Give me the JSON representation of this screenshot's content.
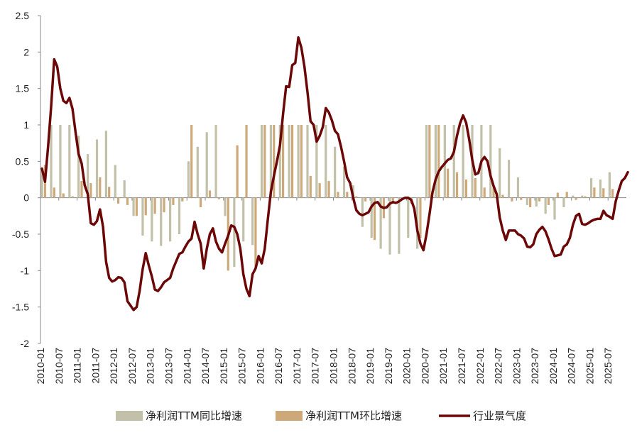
{
  "chart_data": {
    "type": "bar+line",
    "title": "",
    "xlabel": "",
    "ylabel": "",
    "ylim": [
      -2,
      2.5
    ],
    "y_ticks": [
      "2.5",
      "2",
      "1.5",
      "1",
      "0.5",
      "0",
      "-0.5",
      "-1",
      "-1.5",
      "-2"
    ],
    "y_tick_values": [
      2.5,
      2,
      1.5,
      1,
      0.5,
      0,
      -0.5,
      -1,
      -1.5,
      -2
    ],
    "x_range": [
      "2010-01",
      "2025-12"
    ],
    "x_ticks": [
      "2010-01",
      "2010-07",
      "2011-01",
      "2011-07",
      "2012-01",
      "2012-07",
      "2013-01",
      "2013-07",
      "2014-01",
      "2014-07",
      "2015-01",
      "2015-07",
      "2016-01",
      "2016-07",
      "2017-01",
      "2017-07",
      "2018-01",
      "2018-07",
      "2019-01",
      "2019-07",
      "2020-01",
      "2020-07",
      "2021-01",
      "2021-07",
      "2022-01",
      "2022-07",
      "2023-01",
      "2023-07",
      "2024-01",
      "2024-07",
      "2025-01",
      "2025-07"
    ],
    "legend": [
      "净利润TTM同比增速",
      "净利润TTM环比增速",
      "行业景气度"
    ],
    "colors": {
      "yoy": "#c2c0a8",
      "mom": "#cda97a",
      "line": "#6b0707"
    },
    "yoy_bars": [
      [
        "2010-01",
        0.4
      ],
      [
        "2010-04",
        1.0
      ],
      [
        "2010-07",
        1.0
      ],
      [
        "2010-10",
        1.0
      ],
      [
        "2011-01",
        0.85
      ],
      [
        "2011-04",
        0.6
      ],
      [
        "2011-07",
        0.8
      ],
      [
        "2011-10",
        0.92
      ],
      [
        "2012-01",
        0.45
      ],
      [
        "2012-04",
        0.24
      ],
      [
        "2012-07",
        -0.25
      ],
      [
        "2012-10",
        -0.52
      ],
      [
        "2013-01",
        -0.6
      ],
      [
        "2013-04",
        -0.66
      ],
      [
        "2013-07",
        -0.6
      ],
      [
        "2013-10",
        -0.5
      ],
      [
        "2014-01",
        0.5
      ],
      [
        "2014-04",
        0.7
      ],
      [
        "2014-07",
        0.9
      ],
      [
        "2014-10",
        1.0
      ],
      [
        "2015-01",
        -0.25
      ],
      [
        "2015-04",
        -0.95
      ],
      [
        "2015-07",
        -0.6
      ],
      [
        "2015-10",
        -0.65
      ],
      [
        "2016-01",
        1.0
      ],
      [
        "2016-04",
        1.0
      ],
      [
        "2016-07",
        1.0
      ],
      [
        "2016-10",
        1.0
      ],
      [
        "2017-01",
        1.0
      ],
      [
        "2017-04",
        1.0
      ],
      [
        "2017-07",
        1.0
      ],
      [
        "2017-10",
        1.0
      ],
      [
        "2018-01",
        0.7
      ],
      [
        "2018-04",
        0.43
      ],
      [
        "2018-07",
        0.17
      ],
      [
        "2018-10",
        -0.4
      ],
      [
        "2019-01",
        -0.55
      ],
      [
        "2019-04",
        -0.7
      ],
      [
        "2019-07",
        -0.78
      ],
      [
        "2019-10",
        -0.77
      ],
      [
        "2020-01",
        -0.55
      ],
      [
        "2020-04",
        -0.7
      ],
      [
        "2020-07",
        1.0
      ],
      [
        "2020-10",
        1.0
      ],
      [
        "2021-01",
        1.0
      ],
      [
        "2021-04",
        1.0
      ],
      [
        "2021-07",
        1.0
      ],
      [
        "2021-10",
        1.0
      ],
      [
        "2022-01",
        1.0
      ],
      [
        "2022-04",
        1.0
      ],
      [
        "2022-07",
        0.68
      ],
      [
        "2022-10",
        0.52
      ],
      [
        "2023-01",
        0.28
      ],
      [
        "2023-04",
        -0.1
      ],
      [
        "2023-07",
        -0.12
      ],
      [
        "2023-10",
        -0.22
      ],
      [
        "2024-01",
        -0.3
      ],
      [
        "2024-04",
        -0.13
      ],
      [
        "2024-07",
        0.03
      ],
      [
        "2024-10",
        0.03
      ],
      [
        "2025-01",
        0.27
      ],
      [
        "2025-04",
        0.25
      ],
      [
        "2025-07",
        0.35
      ]
    ],
    "mom_bars": [
      [
        "2010-02",
        0.45
      ],
      [
        "2010-05",
        0.14
      ],
      [
        "2010-08",
        0.06
      ],
      [
        "2010-11",
        0.02
      ],
      [
        "2011-02",
        0.23
      ],
      [
        "2011-05",
        0.2
      ],
      [
        "2011-08",
        0.28
      ],
      [
        "2011-11",
        0.15
      ],
      [
        "2012-02",
        -0.08
      ],
      [
        "2012-05",
        -0.1
      ],
      [
        "2012-08",
        -0.25
      ],
      [
        "2012-11",
        -0.24
      ],
      [
        "2013-02",
        -0.22
      ],
      [
        "2013-05",
        -0.2
      ],
      [
        "2013-08",
        -0.1
      ],
      [
        "2013-11",
        -0.05
      ],
      [
        "2014-02",
        1.0
      ],
      [
        "2014-05",
        -0.13
      ],
      [
        "2014-08",
        0.1
      ],
      [
        "2014-11",
        -0.02
      ],
      [
        "2015-02",
        -1.0
      ],
      [
        "2015-05",
        0.72
      ],
      [
        "2015-08",
        1.0
      ],
      [
        "2015-11",
        -0.95
      ],
      [
        "2016-02",
        1.0
      ],
      [
        "2016-05",
        1.0
      ],
      [
        "2016-08",
        1.0
      ],
      [
        "2016-11",
        1.0
      ],
      [
        "2017-02",
        1.0
      ],
      [
        "2017-05",
        0.3
      ],
      [
        "2017-08",
        0.2
      ],
      [
        "2017-11",
        0.23
      ],
      [
        "2018-02",
        0.08
      ],
      [
        "2018-05",
        0.08
      ],
      [
        "2018-08",
        0.02
      ],
      [
        "2018-11",
        -0.05
      ],
      [
        "2019-02",
        -0.58
      ],
      [
        "2019-05",
        -0.28
      ],
      [
        "2019-08",
        -0.05
      ],
      [
        "2019-11",
        -0.02
      ],
      [
        "2020-02",
        -0.08
      ],
      [
        "2020-05",
        -0.55
      ],
      [
        "2020-08",
        1.0
      ],
      [
        "2020-11",
        1.0
      ],
      [
        "2021-02",
        0.4
      ],
      [
        "2021-05",
        0.35
      ],
      [
        "2021-08",
        0.25
      ],
      [
        "2021-11",
        0.27
      ],
      [
        "2022-02",
        0.14
      ],
      [
        "2022-05",
        0.16
      ],
      [
        "2022-08",
        0.04
      ],
      [
        "2022-11",
        -0.05
      ],
      [
        "2023-02",
        -0.03
      ],
      [
        "2023-05",
        -0.13
      ],
      [
        "2023-08",
        -0.05
      ],
      [
        "2023-11",
        -0.1
      ],
      [
        "2024-02",
        0.07
      ],
      [
        "2024-05",
        0.08
      ],
      [
        "2024-08",
        -0.03
      ],
      [
        "2024-11",
        0.02
      ],
      [
        "2025-02",
        0.14
      ],
      [
        "2025-05",
        0.13
      ],
      [
        "2025-08",
        0.12
      ]
    ],
    "line_points": [
      [
        "2010-01",
        0.4
      ],
      [
        "2010-02",
        0.22
      ],
      [
        "2010-03",
        0.7
      ],
      [
        "2010-04",
        1.25
      ],
      [
        "2010-05",
        1.9
      ],
      [
        "2010-06",
        1.8
      ],
      [
        "2010-07",
        1.5
      ],
      [
        "2010-08",
        1.33
      ],
      [
        "2010-09",
        1.3
      ],
      [
        "2010-10",
        1.37
      ],
      [
        "2010-11",
        1.22
      ],
      [
        "2010-12",
        0.9
      ],
      [
        "2011-01",
        0.6
      ],
      [
        "2011-02",
        0.47
      ],
      [
        "2011-03",
        0.17
      ],
      [
        "2011-04",
        0.05
      ],
      [
        "2011-05",
        -0.35
      ],
      [
        "2011-06",
        -0.37
      ],
      [
        "2011-07",
        -0.32
      ],
      [
        "2011-08",
        -0.16
      ],
      [
        "2011-09",
        -0.4
      ],
      [
        "2011-10",
        -0.88
      ],
      [
        "2011-11",
        -1.1
      ],
      [
        "2011-12",
        -1.15
      ],
      [
        "2012-01",
        -1.13
      ],
      [
        "2012-02",
        -1.09
      ],
      [
        "2012-03",
        -1.1
      ],
      [
        "2012-04",
        -1.16
      ],
      [
        "2012-05",
        -1.42
      ],
      [
        "2012-06",
        -1.48
      ],
      [
        "2012-07",
        -1.54
      ],
      [
        "2012-08",
        -1.5
      ],
      [
        "2012-09",
        -1.28
      ],
      [
        "2012-10",
        -0.98
      ],
      [
        "2012-11",
        -0.76
      ],
      [
        "2012-12",
        -0.93
      ],
      [
        "2013-01",
        -1.08
      ],
      [
        "2013-02",
        -1.26
      ],
      [
        "2013-03",
        -1.28
      ],
      [
        "2013-04",
        -1.23
      ],
      [
        "2013-05",
        -1.16
      ],
      [
        "2013-06",
        -1.13
      ],
      [
        "2013-07",
        -1.1
      ],
      [
        "2013-08",
        -0.97
      ],
      [
        "2013-09",
        -0.87
      ],
      [
        "2013-10",
        -0.77
      ],
      [
        "2013-11",
        -0.75
      ],
      [
        "2013-12",
        -0.67
      ],
      [
        "2014-01",
        -0.6
      ],
      [
        "2014-02",
        -0.56
      ],
      [
        "2014-03",
        -0.33
      ],
      [
        "2014-04",
        -0.5
      ],
      [
        "2014-05",
        -0.63
      ],
      [
        "2014-06",
        -0.97
      ],
      [
        "2014-07",
        -0.7
      ],
      [
        "2014-08",
        -0.5
      ],
      [
        "2014-09",
        -0.42
      ],
      [
        "2014-10",
        -0.6
      ],
      [
        "2014-11",
        -0.7
      ],
      [
        "2014-12",
        -0.75
      ],
      [
        "2015-01",
        -0.63
      ],
      [
        "2015-02",
        -0.52
      ],
      [
        "2015-03",
        -0.38
      ],
      [
        "2015-04",
        -0.4
      ],
      [
        "2015-05",
        -0.5
      ],
      [
        "2015-06",
        -0.7
      ],
      [
        "2015-07",
        -1.05
      ],
      [
        "2015-08",
        -1.25
      ],
      [
        "2015-09",
        -1.35
      ],
      [
        "2015-10",
        -1.05
      ],
      [
        "2015-11",
        -0.97
      ],
      [
        "2015-12",
        -0.8
      ],
      [
        "2016-01",
        -0.9
      ],
      [
        "2016-02",
        -0.7
      ],
      [
        "2016-03",
        -0.3
      ],
      [
        "2016-04",
        0.08
      ],
      [
        "2016-05",
        0.3
      ],
      [
        "2016-06",
        0.5
      ],
      [
        "2016-07",
        0.72
      ],
      [
        "2016-08",
        1.15
      ],
      [
        "2016-09",
        1.53
      ],
      [
        "2016-10",
        1.52
      ],
      [
        "2016-11",
        1.82
      ],
      [
        "2016-12",
        1.85
      ],
      [
        "2017-01",
        2.2
      ],
      [
        "2017-02",
        2.06
      ],
      [
        "2017-03",
        1.8
      ],
      [
        "2017-04",
        1.45
      ],
      [
        "2017-05",
        1.05
      ],
      [
        "2017-06",
        1.0
      ],
      [
        "2017-07",
        0.77
      ],
      [
        "2017-08",
        0.85
      ],
      [
        "2017-09",
        0.97
      ],
      [
        "2017-10",
        1.23
      ],
      [
        "2017-11",
        1.17
      ],
      [
        "2017-12",
        1.06
      ],
      [
        "2018-01",
        0.92
      ],
      [
        "2018-02",
        0.87
      ],
      [
        "2018-03",
        0.7
      ],
      [
        "2018-04",
        0.5
      ],
      [
        "2018-05",
        0.28
      ],
      [
        "2018-06",
        0.2
      ],
      [
        "2018-07",
        0.0
      ],
      [
        "2018-08",
        -0.17
      ],
      [
        "2018-09",
        -0.22
      ],
      [
        "2018-10",
        -0.24
      ],
      [
        "2018-11",
        -0.22
      ],
      [
        "2018-12",
        -0.2
      ],
      [
        "2019-01",
        -0.12
      ],
      [
        "2019-02",
        -0.07
      ],
      [
        "2019-03",
        -0.06
      ],
      [
        "2019-04",
        -0.12
      ],
      [
        "2019-05",
        -0.14
      ],
      [
        "2019-06",
        -0.13
      ],
      [
        "2019-07",
        -0.08
      ],
      [
        "2019-08",
        -0.06
      ],
      [
        "2019-09",
        -0.07
      ],
      [
        "2019-10",
        -0.05
      ],
      [
        "2019-11",
        -0.02
      ],
      [
        "2019-12",
        0.0
      ],
      [
        "2020-01",
        0.0
      ],
      [
        "2020-02",
        -0.03
      ],
      [
        "2020-03",
        -0.15
      ],
      [
        "2020-04",
        -0.45
      ],
      [
        "2020-05",
        -0.63
      ],
      [
        "2020-06",
        -0.72
      ],
      [
        "2020-07",
        -0.5
      ],
      [
        "2020-08",
        -0.22
      ],
      [
        "2020-09",
        0.08
      ],
      [
        "2020-10",
        0.25
      ],
      [
        "2020-11",
        0.36
      ],
      [
        "2020-12",
        0.42
      ],
      [
        "2021-01",
        0.47
      ],
      [
        "2021-02",
        0.52
      ],
      [
        "2021-03",
        0.54
      ],
      [
        "2021-04",
        0.63
      ],
      [
        "2021-05",
        0.85
      ],
      [
        "2021-06",
        1.02
      ],
      [
        "2021-07",
        1.13
      ],
      [
        "2021-08",
        1.03
      ],
      [
        "2021-09",
        0.8
      ],
      [
        "2021-10",
        0.52
      ],
      [
        "2021-11",
        0.32
      ],
      [
        "2021-12",
        0.34
      ],
      [
        "2022-01",
        0.5
      ],
      [
        "2022-02",
        0.56
      ],
      [
        "2022-03",
        0.5
      ],
      [
        "2022-04",
        0.3
      ],
      [
        "2022-05",
        0.16
      ],
      [
        "2022-06",
        0.05
      ],
      [
        "2022-07",
        -0.27
      ],
      [
        "2022-08",
        -0.45
      ],
      [
        "2022-09",
        -0.58
      ],
      [
        "2022-10",
        -0.45
      ],
      [
        "2022-11",
        -0.45
      ],
      [
        "2022-12",
        -0.45
      ],
      [
        "2023-01",
        -0.5
      ],
      [
        "2023-02",
        -0.52
      ],
      [
        "2023-03",
        -0.56
      ],
      [
        "2023-04",
        -0.67
      ],
      [
        "2023-05",
        -0.68
      ],
      [
        "2023-06",
        -0.64
      ],
      [
        "2023-07",
        -0.5
      ],
      [
        "2023-08",
        -0.44
      ],
      [
        "2023-09",
        -0.4
      ],
      [
        "2023-10",
        -0.46
      ],
      [
        "2023-11",
        -0.57
      ],
      [
        "2023-12",
        -0.7
      ],
      [
        "2024-01",
        -0.8
      ],
      [
        "2024-02",
        -0.79
      ],
      [
        "2024-03",
        -0.78
      ],
      [
        "2024-04",
        -0.67
      ],
      [
        "2024-05",
        -0.64
      ],
      [
        "2024-06",
        -0.55
      ],
      [
        "2024-07",
        -0.37
      ],
      [
        "2024-08",
        -0.25
      ],
      [
        "2024-09",
        -0.22
      ],
      [
        "2024-10",
        -0.36
      ],
      [
        "2024-11",
        -0.37
      ],
      [
        "2024-12",
        -0.35
      ],
      [
        "2025-01",
        -0.32
      ],
      [
        "2025-02",
        -0.3
      ],
      [
        "2025-03",
        -0.29
      ],
      [
        "2025-04",
        -0.29
      ],
      [
        "2025-05",
        -0.18
      ],
      [
        "2025-06",
        -0.24
      ],
      [
        "2025-07",
        -0.26
      ],
      [
        "2025-08",
        -0.29
      ],
      [
        "2025-09",
        -0.05
      ],
      [
        "2025-10",
        0.1
      ],
      [
        "2025-11",
        0.23
      ],
      [
        "2025-12",
        0.27
      ],
      [
        "2026-01",
        0.35
      ]
    ]
  }
}
